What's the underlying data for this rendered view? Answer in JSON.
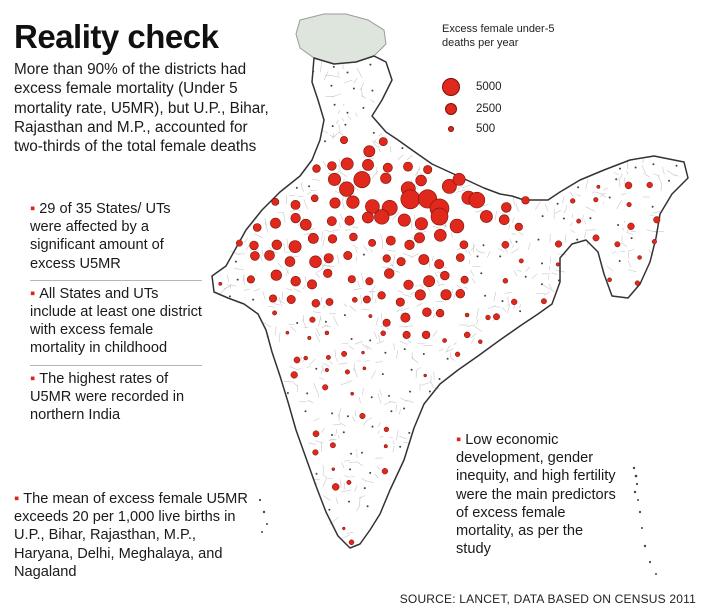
{
  "headline": "Reality check",
  "intro": "More than 90% of the districts had excess female mortality (Under 5 mortality rate, U5MR), but U.P., Bihar, Rajasthan and  M.P., accounted for two-thirds of the total female deaths",
  "facts": [
    "29 of 35 States/ UTs were affected by a significant amount of excess U5MR",
    "All States and UTs include at least one district with excess female mortality in childhood",
    "The highest rates of U5MR were recorded  in northern India"
  ],
  "mean_note": "The mean of excess female U5MR exceeds 20 per 1,000 live births in  U.P., Bihar, Rajasthan, M.P., Haryana, Delhi, Meghalaya, and Nagaland",
  "predictors": "Low economic development, gender inequity, and high fertility were the main predictors of excess female mortality, as per the study",
  "legend": {
    "title": "Excess female under-5  deaths per year",
    "entries": [
      {
        "label": "5000",
        "value": 5000
      },
      {
        "label": "2500",
        "value": 2500
      },
      {
        "label": "500",
        "value": 500
      }
    ]
  },
  "source": "SOURCE: LANCET, DATA BASED ON CENSUS  2011",
  "colors": {
    "bubble_fill": "#e0281c",
    "bubble_stroke": "#7a1208",
    "bullet": "#d8261b",
    "map_outline": "#333333",
    "district_lines": "#c7c7c7",
    "disputed_region": "#dde5dd"
  }
}
